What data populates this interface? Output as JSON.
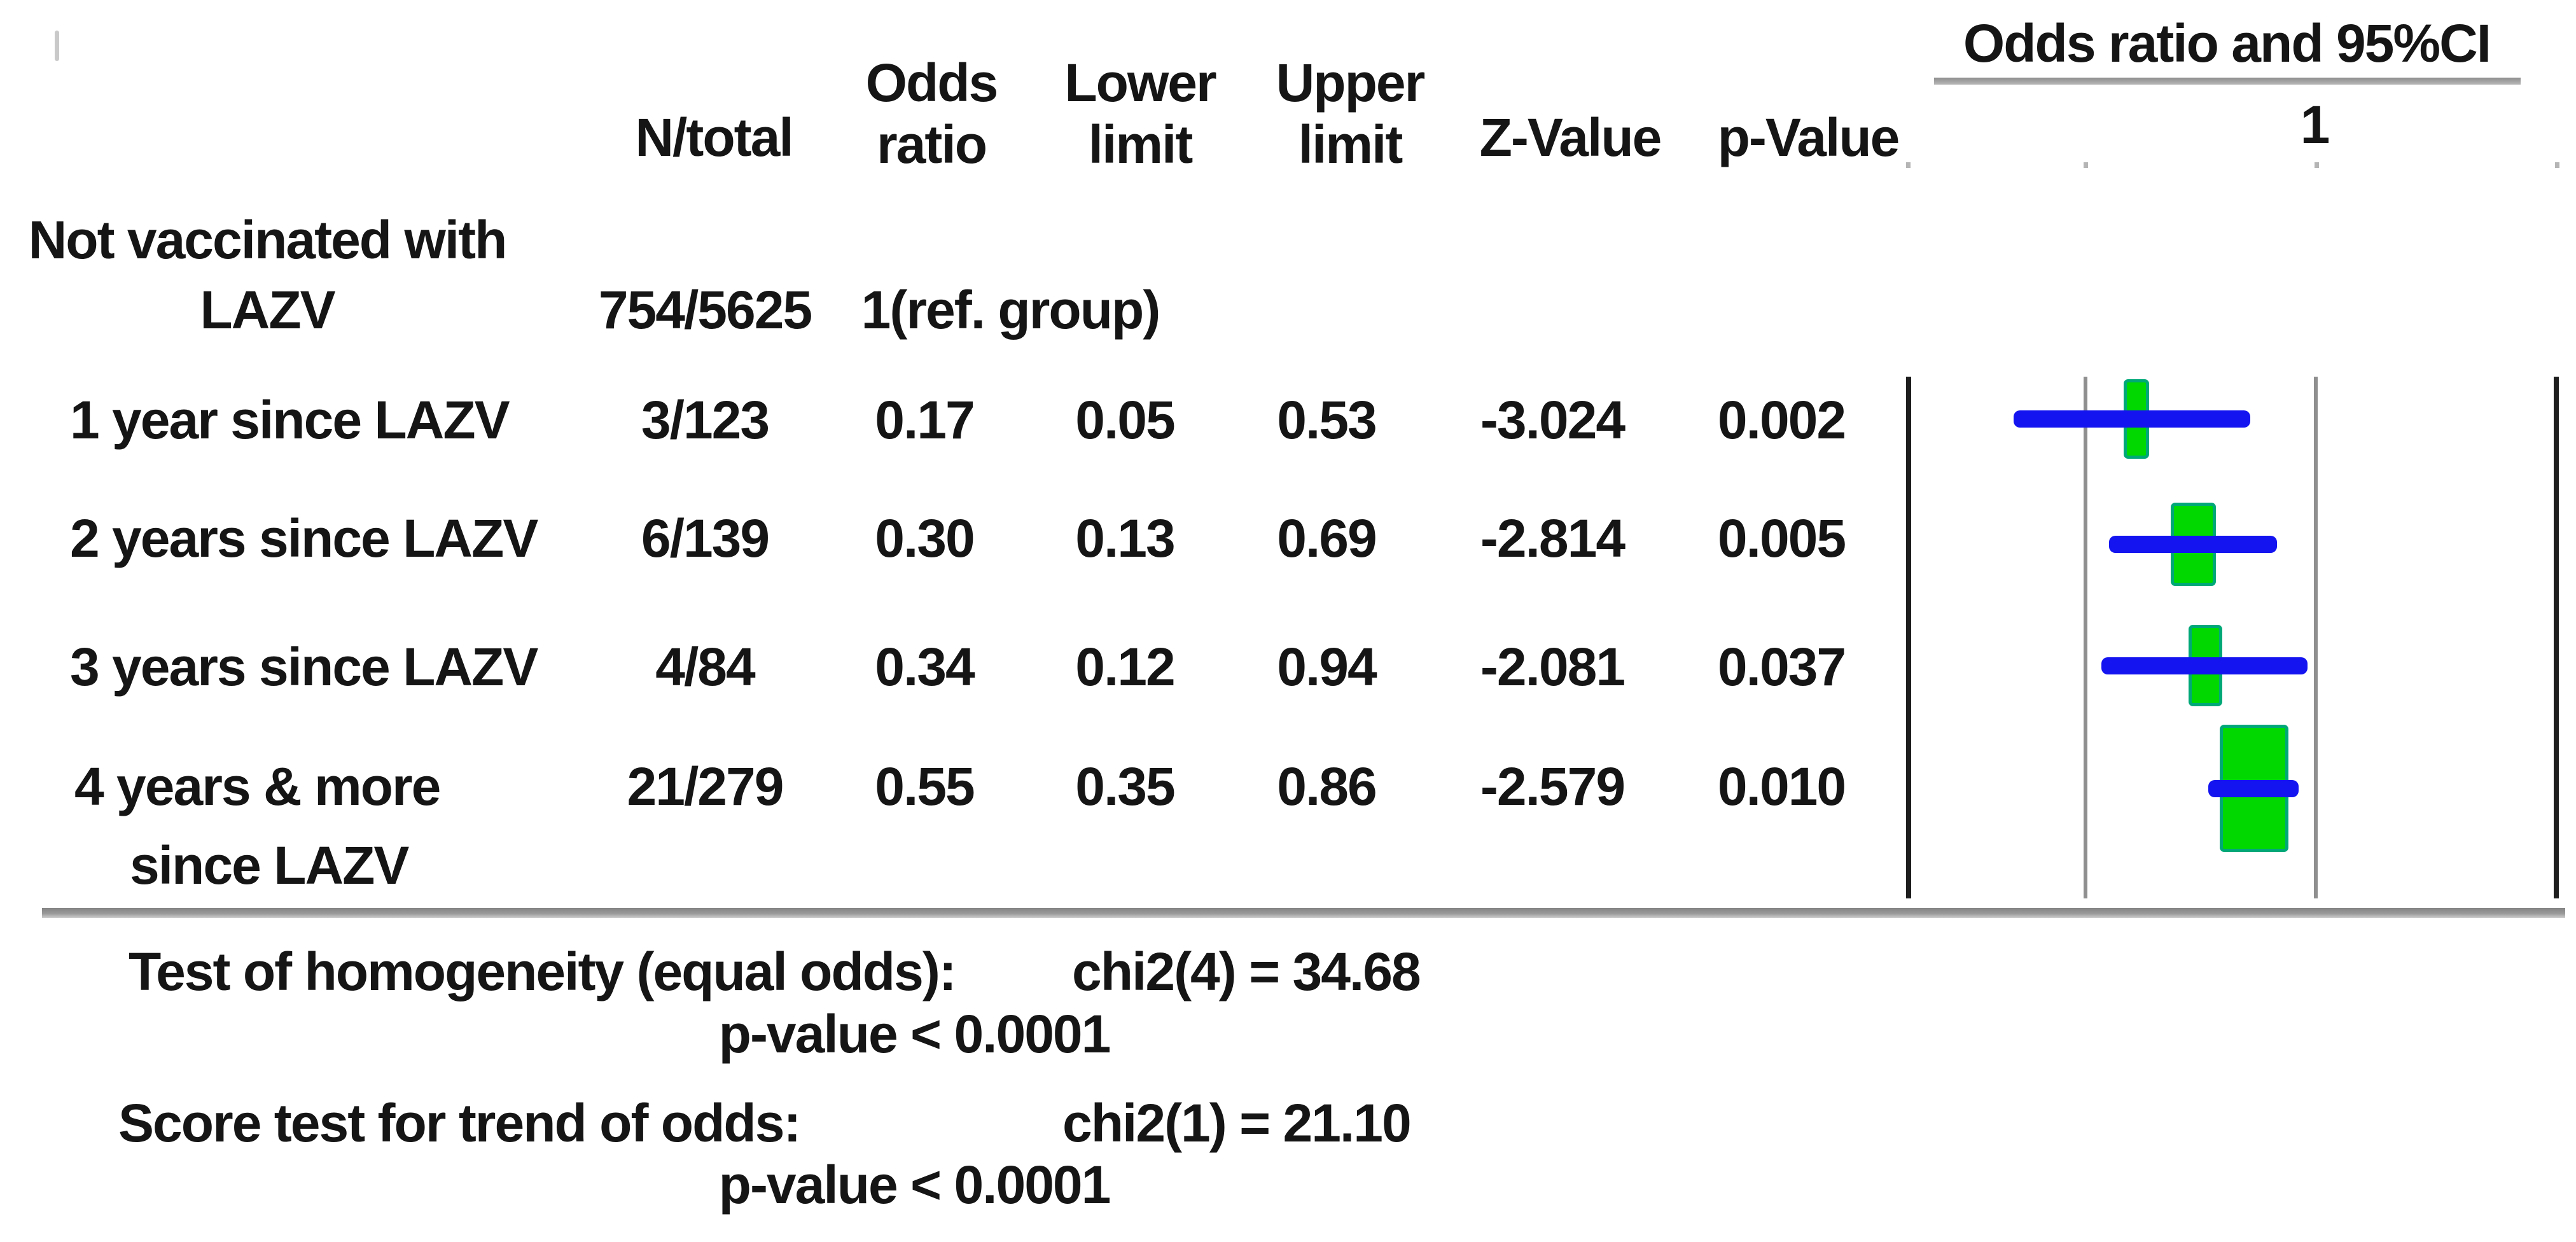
{
  "header": {
    "n_total": "N/total",
    "odds_ratio_line1": "Odds",
    "odds_ratio_line2": "ratio",
    "lower_line1": "Lower",
    "lower_line2": "limit",
    "upper_line1": "Upper",
    "upper_line2": "limit",
    "z_value": "Z-Value",
    "p_value": "p-Value",
    "plot_title": "Odds ratio and 95%CI",
    "plot_axis_tick": "1"
  },
  "rows": [
    {
      "label_line1": "Not vaccinated with",
      "label_line2": "LAZV",
      "n_total": "754/5625",
      "odds_ratio": "1(ref. group)"
    },
    {
      "label_line1": "1 year since LAZV",
      "n_total": "3/123",
      "odds_ratio": "0.17",
      "lower": "0.05",
      "upper": "0.53",
      "z": "-3.024",
      "p": "0.002"
    },
    {
      "label_line1": "2 years since LAZV",
      "n_total": "6/139",
      "odds_ratio": "0.30",
      "lower": "0.13",
      "upper": "0.69",
      "z": "-2.814",
      "p": "0.005"
    },
    {
      "label_line1": "3 years since LAZV",
      "n_total": "4/84",
      "odds_ratio": "0.34",
      "lower": "0.12",
      "upper": "0.94",
      "z": "-2.081",
      "p": "0.037"
    },
    {
      "label_line1": "4 years & more",
      "label_line2": "since LAZV",
      "n_total": "21/279",
      "odds_ratio": "0.55",
      "lower": "0.35",
      "upper": "0.86",
      "z": "-2.579",
      "p": "0.010"
    }
  ],
  "footer": {
    "tests": [
      {
        "name": "Test of homogeneity (equal odds):",
        "stat": "chi2(4) = 34.68",
        "p": "p-value < 0.0001"
      },
      {
        "name": "Score test for trend of odds:",
        "stat": "chi2(1) = 21.10",
        "p": "p-value < 0.0001"
      }
    ]
  },
  "chart_data": {
    "type": "forest",
    "title": "Odds ratio and 95%CI",
    "x_scale": "log10",
    "reference_value": 1,
    "gridline_values": [
      0.1,
      1
    ],
    "axis_tick_labels": [
      "1"
    ],
    "reference_group": {
      "label": "Not vaccinated with LAZV",
      "n_total": "754/5625",
      "odds_ratio_text": "1(ref. group)"
    },
    "series": [
      {
        "label": "1 year since LAZV",
        "n_total": "3/123",
        "or": 0.17,
        "lower": 0.05,
        "upper": 0.53,
        "z": -3.024,
        "p": 0.002
      },
      {
        "label": "2 years since LAZV",
        "n_total": "6/139",
        "or": 0.3,
        "lower": 0.13,
        "upper": 0.69,
        "z": -2.814,
        "p": 0.005
      },
      {
        "label": "3 years since LAZV",
        "n_total": "4/84",
        "or": 0.34,
        "lower": 0.12,
        "upper": 0.94,
        "z": -2.081,
        "p": 0.037
      },
      {
        "label": "4 years & more since LAZV",
        "n_total": "21/279",
        "or": 0.55,
        "lower": 0.35,
        "upper": 0.86,
        "z": -2.579,
        "p": 0.01
      }
    ],
    "marker_widths_px": [
      40,
      71,
      53,
      108
    ],
    "marker_heights_px": [
      125,
      131,
      128,
      200
    ],
    "colors": {
      "ci_bar": "#1414f0",
      "marker_fill": "#00d800",
      "marker_border": "#00a878",
      "gridline": "#8f8f8f",
      "frame_line": "#1e1e1e"
    },
    "homogeneity_test": {
      "chi2_df4": 34.68,
      "p": "< 0.0001"
    },
    "trend_test": {
      "chi2_df1": 21.1,
      "p": "< 0.0001"
    }
  }
}
